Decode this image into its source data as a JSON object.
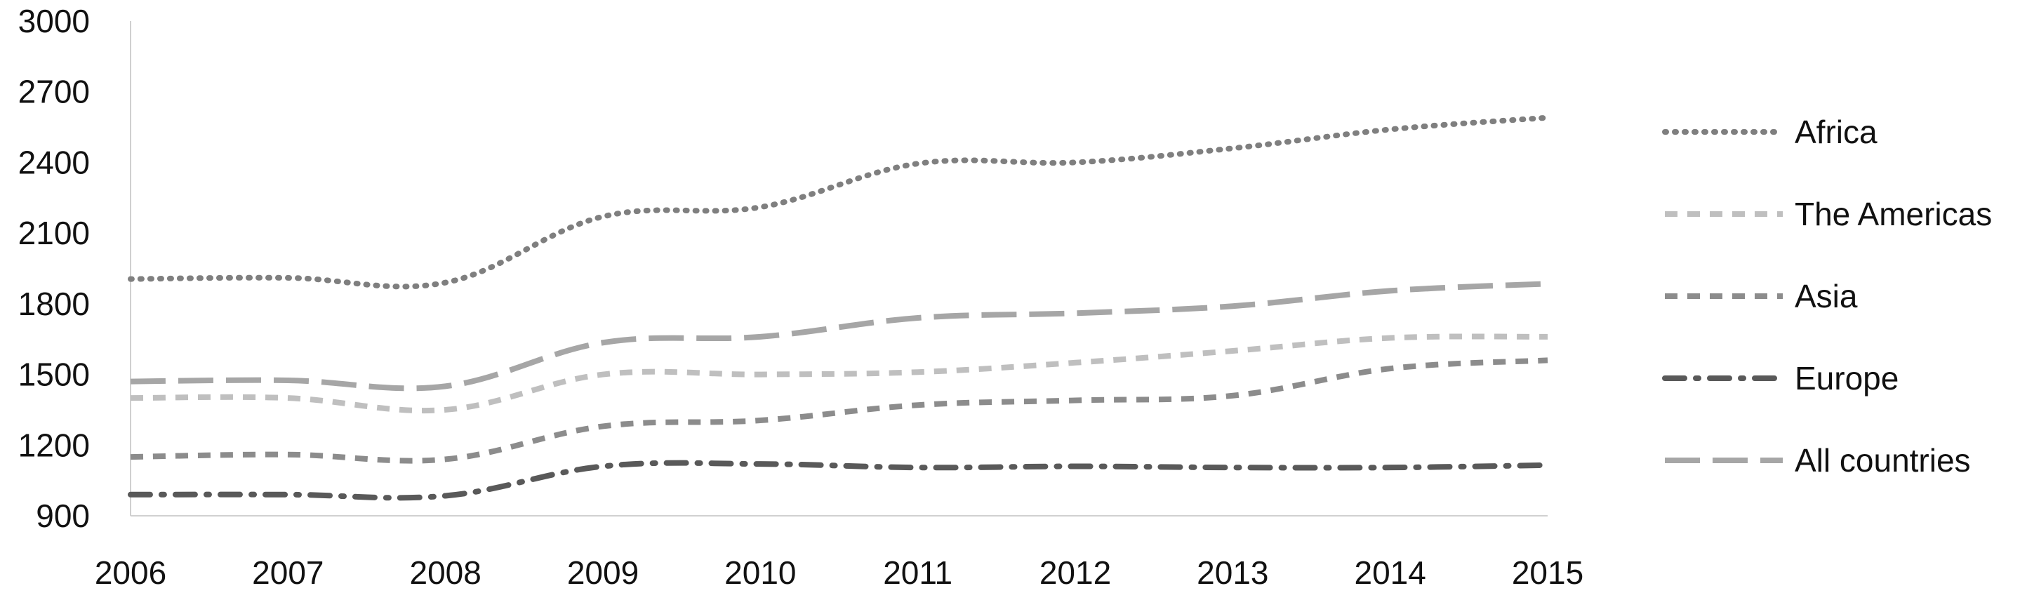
{
  "chart_data": {
    "type": "line",
    "title": "",
    "xlabel": "",
    "ylabel": "",
    "x": [
      "2006",
      "2007",
      "2008",
      "2009",
      "2010",
      "2011",
      "2012",
      "2013",
      "2014",
      "2015"
    ],
    "y_ticks": [
      "900",
      "1200",
      "1500",
      "1800",
      "2100",
      "2400",
      "2700",
      "3000"
    ],
    "ylim": [
      900,
      3000
    ],
    "grid": false,
    "legend_position": "right",
    "series": [
      {
        "name": "Africa",
        "values": [
          1905,
          1910,
          1890,
          2170,
          2210,
          2395,
          2400,
          2460,
          2540,
          2590
        ],
        "color": "#7f7f7f",
        "style": "dotted"
      },
      {
        "name": "The Americas",
        "values": [
          1400,
          1400,
          1350,
          1500,
          1500,
          1510,
          1550,
          1600,
          1655,
          1660
        ],
        "color": "#bfbfbf",
        "style": "dashed"
      },
      {
        "name": "Asia",
        "values": [
          1150,
          1160,
          1140,
          1280,
          1305,
          1370,
          1390,
          1410,
          1525,
          1560
        ],
        "color": "#8c8c8c",
        "style": "dashed"
      },
      {
        "name": "Europe",
        "values": [
          990,
          990,
          985,
          1110,
          1120,
          1105,
          1110,
          1105,
          1105,
          1115
        ],
        "color": "#595959",
        "style": "dash-dot"
      },
      {
        "name": "All countries",
        "values": [
          1470,
          1475,
          1450,
          1635,
          1660,
          1740,
          1760,
          1790,
          1855,
          1885
        ],
        "color": "#a6a6a6",
        "style": "long-dash"
      }
    ]
  }
}
